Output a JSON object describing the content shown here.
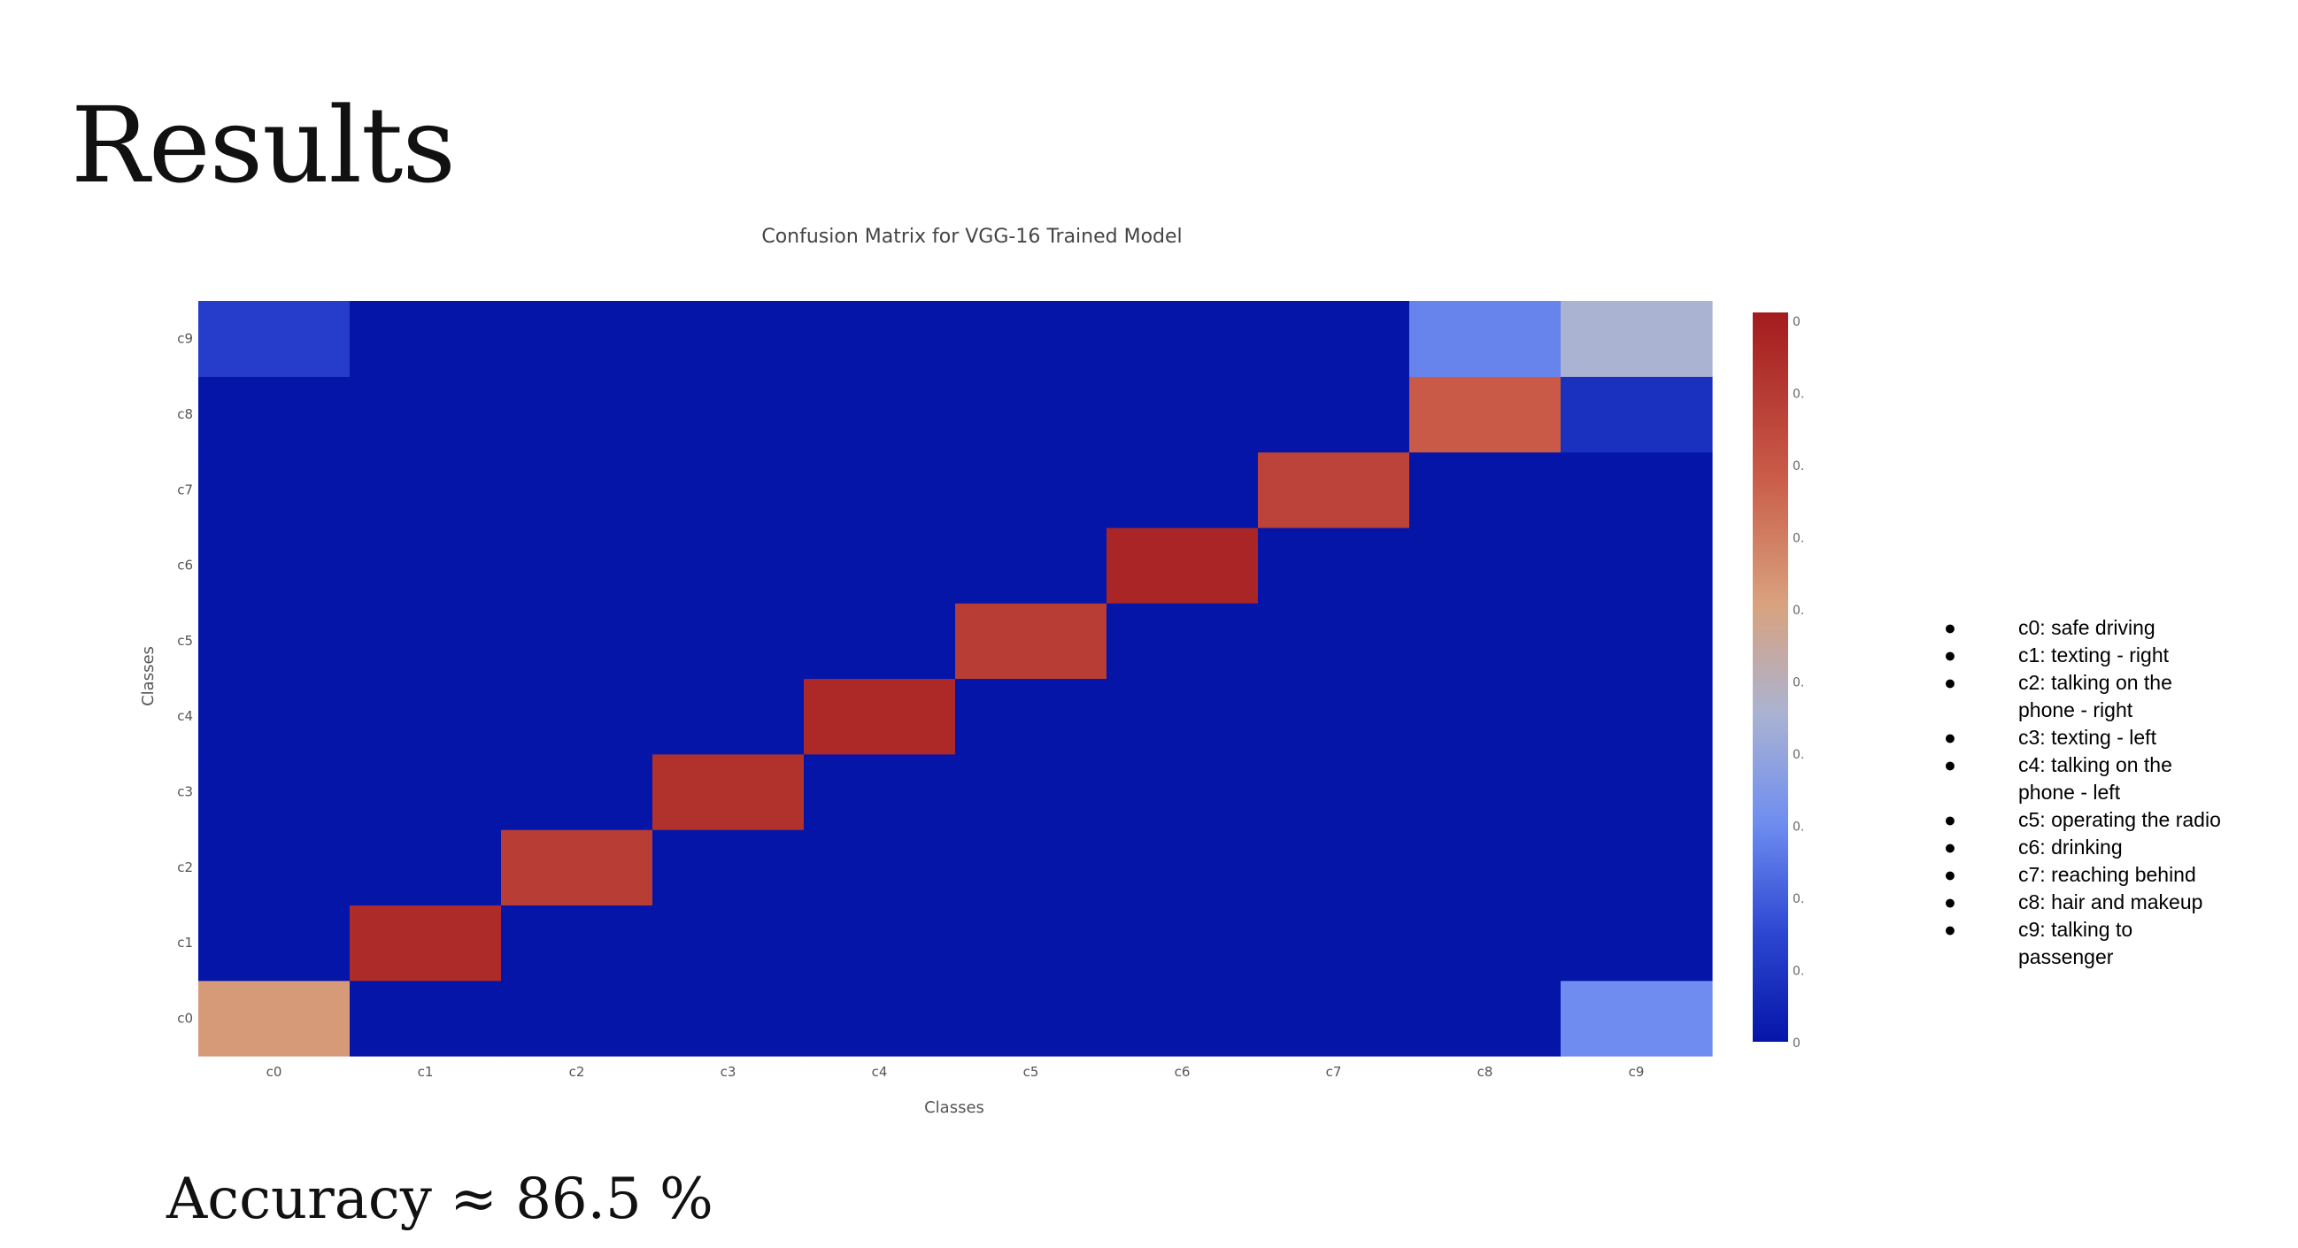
{
  "slide": {
    "title": "Results",
    "accuracy_text": "Accuracy ≈ 86.5 %"
  },
  "chart_data": {
    "type": "heatmap",
    "title": "Confusion Matrix for VGG-16 Trained Model",
    "xlabel": "Classes",
    "ylabel": "Classes",
    "x": [
      "c0",
      "c1",
      "c2",
      "c3",
      "c4",
      "c5",
      "c6",
      "c7",
      "c8",
      "c9"
    ],
    "y": [
      "c0",
      "c1",
      "c2",
      "c3",
      "c4",
      "c5",
      "c6",
      "c7",
      "c8",
      "c9"
    ],
    "z": [
      [
        0.62,
        0,
        0,
        0,
        0,
        0,
        0,
        0,
        0,
        0.3
      ],
      [
        0,
        0.94,
        0,
        0,
        0,
        0,
        0,
        0,
        0,
        0
      ],
      [
        0,
        0,
        0.88,
        0,
        0,
        0,
        0,
        0,
        0,
        0
      ],
      [
        0,
        0,
        0,
        0.92,
        0,
        0,
        0,
        0,
        0,
        0
      ],
      [
        0,
        0,
        0,
        0,
        0.95,
        0,
        0,
        0,
        0,
        0
      ],
      [
        0,
        0,
        0,
        0,
        0,
        0.88,
        0,
        0,
        0,
        0
      ],
      [
        0,
        0,
        0,
        0,
        0,
        0,
        0.96,
        0,
        0,
        0
      ],
      [
        0,
        0,
        0,
        0,
        0,
        0,
        0,
        0.86,
        0,
        0
      ],
      [
        0,
        0,
        0,
        0,
        0,
        0,
        0,
        0,
        0.78,
        0.08
      ],
      [
        0.12,
        0,
        0,
        0,
        0,
        0,
        0,
        0,
        0.28,
        0.45
      ]
    ],
    "zlim": [
      0,
      1
    ],
    "colorscale": [
      [
        0,
        "#0515a8"
      ],
      [
        0.15,
        "#2d47d2"
      ],
      [
        0.3,
        "#6f8df0"
      ],
      [
        0.45,
        "#aab3d2"
      ],
      [
        0.6,
        "#d9a27e"
      ],
      [
        0.78,
        "#c95a48"
      ],
      [
        1,
        "#a31b1e"
      ]
    ],
    "colorbar_ticks": [
      "0",
      "0.",
      "0.",
      "0.",
      "0.",
      "0.",
      "0.",
      "0.",
      "0.",
      "0.",
      "0"
    ],
    "colorbar_position": "right",
    "grid": false
  },
  "legend": [
    {
      "bullet": "●",
      "text": "c0: safe driving"
    },
    {
      "bullet": "●",
      "text": "c1: texting - right"
    },
    {
      "bullet": "●",
      "text": "c2: talking on the phone - right"
    },
    {
      "bullet": "●",
      "text": "c3: texting - left"
    },
    {
      "bullet": "●",
      "text": "c4: talking on the phone - left"
    },
    {
      "bullet": "●",
      "text": "c5: operating the radio"
    },
    {
      "bullet": "●",
      "text": "c6: drinking"
    },
    {
      "bullet": "●",
      "text": "c7: reaching behind"
    },
    {
      "bullet": "●",
      "text": "c8: hair and makeup"
    },
    {
      "bullet": "●",
      "text": "c9: talking to passenger"
    }
  ]
}
